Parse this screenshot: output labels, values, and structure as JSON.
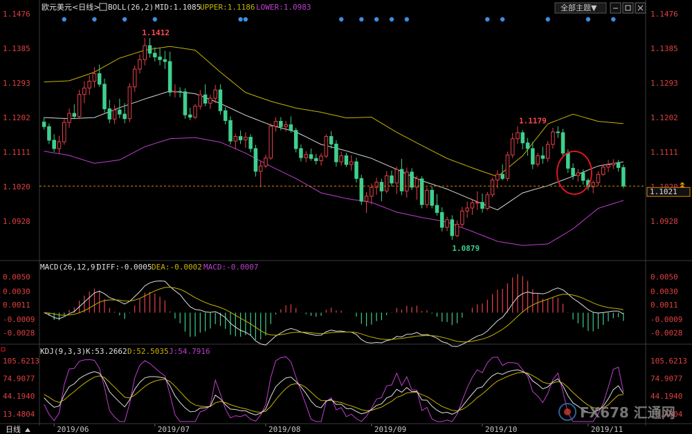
{
  "main": {
    "title": "欧元美元<日线>",
    "indicator": "BOLL(26,2)",
    "mid_text": "MID:1.1085",
    "upper_text": "UPPER:1.1186",
    "lower_text": "LOWER:1.0983",
    "theme_label": "全部主题▼",
    "y_ticks": [
      "1.1476",
      "1.1385",
      "1.1293",
      "1.1202",
      "1.1111",
      "1.1020",
      "1.0928"
    ],
    "high_label": "1.1412",
    "high2_label": "1.1179",
    "low_label": "1.0879",
    "last_price": "1.1021"
  },
  "macd": {
    "title": "MACD(26,12,9)",
    "diff_text": "DIFF:-0.0005",
    "dea_text": "DEA:-0.0002",
    "macd_text": "MACD:-0.0007",
    "y_ticks": [
      "0.0050",
      "0.0030",
      "0.0011",
      "-0.0009",
      "-0.0028"
    ]
  },
  "kdj": {
    "title": "KDJ(9,3,3)",
    "k_text": "K:53.2662",
    "d_text": "D:52.5035",
    "j_text": "J:54.7916",
    "y_ticks": [
      "105.6213",
      "74.9077",
      "44.1940",
      "13.4804"
    ]
  },
  "x_labels": [
    "2019/06",
    "2019/07",
    "2019/08",
    "2019/09",
    "2019/10",
    "2019/11"
  ],
  "bottom_left": "日线",
  "watermark": "FX678 汇通网",
  "colors": {
    "up": "#e8424a",
    "down": "#3fcf8e",
    "mid": "#d9d9d9",
    "upper": "#c8b400",
    "lower": "#c03fd0",
    "macd_diff": "#e0e0e0",
    "macd_dea": "#c8b400",
    "kdj_k": "#e0e0e0",
    "kdj_d": "#c8b400",
    "kdj_j": "#c03fd0",
    "price_line": "#e08a00",
    "accent_red": "#e0161e"
  },
  "chart_data": {
    "type": "candlestick",
    "title": "欧元美元<日线>",
    "xlabel": "",
    "ylabel": "",
    "ylim": [
      1.0837,
      1.1476
    ],
    "x_tick_labels": [
      "2019/06",
      "2019/07",
      "2019/08",
      "2019/09",
      "2019/10",
      "2019/11"
    ],
    "annotations": [
      {
        "text": "1.1412",
        "value": 1.1412
      },
      {
        "text": "1.1179",
        "value": 1.1179
      },
      {
        "text": "1.0879",
        "value": 1.0879
      }
    ],
    "boll": {
      "mid": [
        1.1202,
        1.1199,
        1.1202,
        1.1228,
        1.1251,
        1.1272,
        1.1265,
        1.1239,
        1.1208,
        1.1182,
        1.1164,
        1.1131,
        1.1114,
        1.1094,
        1.1065,
        1.1035,
        1.1013,
        1.0985,
        1.0958,
        1.1003,
        1.1022,
        1.1047,
        1.1074,
        1.1085
      ],
      "upper": [
        1.1296,
        1.1299,
        1.1322,
        1.1359,
        1.138,
        1.139,
        1.138,
        1.1322,
        1.1268,
        1.1245,
        1.1227,
        1.1216,
        1.1201,
        1.1203,
        1.1163,
        1.1128,
        1.1094,
        1.1069,
        1.1046,
        1.1101,
        1.1185,
        1.1211,
        1.1192,
        1.1186
      ],
      "lower": [
        1.1113,
        1.1102,
        1.1081,
        1.109,
        1.1125,
        1.1146,
        1.1149,
        1.1137,
        1.1108,
        1.1073,
        1.1041,
        1.1003,
        1.0988,
        1.0978,
        1.0952,
        1.0938,
        1.0926,
        1.0901,
        1.0875,
        1.0864,
        1.0868,
        1.0908,
        1.0962,
        1.0983
      ]
    },
    "ohlc": [
      [
        1.119,
        1.1203,
        1.117,
        1.1178
      ],
      [
        1.1178,
        1.1186,
        1.1132,
        1.1142
      ],
      [
        1.1142,
        1.1158,
        1.1111,
        1.112
      ],
      [
        1.112,
        1.1154,
        1.1108,
        1.1138
      ],
      [
        1.1138,
        1.1198,
        1.113,
        1.1189
      ],
      [
        1.1189,
        1.1226,
        1.1175,
        1.1213
      ],
      [
        1.1213,
        1.1237,
        1.1198,
        1.1205
      ],
      [
        1.1205,
        1.1275,
        1.1198,
        1.1263
      ],
      [
        1.1263,
        1.1298,
        1.124,
        1.128
      ],
      [
        1.128,
        1.1314,
        1.1262,
        1.1298
      ],
      [
        1.1298,
        1.1335,
        1.1281,
        1.1318
      ],
      [
        1.1318,
        1.1342,
        1.1283,
        1.129
      ],
      [
        1.129,
        1.1305,
        1.1215,
        1.1225
      ],
      [
        1.1225,
        1.1249,
        1.1187,
        1.1198
      ],
      [
        1.1198,
        1.1236,
        1.1185,
        1.1222
      ],
      [
        1.1222,
        1.1252,
        1.12,
        1.1211
      ],
      [
        1.1211,
        1.124,
        1.1187,
        1.1199
      ],
      [
        1.1199,
        1.1293,
        1.119,
        1.1283
      ],
      [
        1.1283,
        1.1339,
        1.127,
        1.133
      ],
      [
        1.133,
        1.1369,
        1.1318,
        1.1355
      ],
      [
        1.1355,
        1.1412,
        1.134,
        1.1392
      ],
      [
        1.1392,
        1.1412,
        1.136,
        1.1372
      ],
      [
        1.1372,
        1.1388,
        1.135,
        1.1362
      ],
      [
        1.1362,
        1.1385,
        1.134,
        1.1355
      ],
      [
        1.1355,
        1.1378,
        1.133,
        1.135
      ],
      [
        1.135,
        1.1376,
        1.1258,
        1.1269
      ],
      [
        1.1269,
        1.129,
        1.1255,
        1.1271
      ],
      [
        1.1271,
        1.1282,
        1.1255,
        1.127
      ],
      [
        1.127,
        1.1279,
        1.1199,
        1.1209
      ],
      [
        1.1209,
        1.1228,
        1.1195,
        1.1203
      ],
      [
        1.1203,
        1.1238,
        1.1198,
        1.1232
      ],
      [
        1.1232,
        1.1275,
        1.1223,
        1.1262
      ],
      [
        1.1262,
        1.129,
        1.1232,
        1.124
      ],
      [
        1.124,
        1.1262,
        1.1225,
        1.1253
      ],
      [
        1.1253,
        1.1288,
        1.124,
        1.1275
      ],
      [
        1.1275,
        1.129,
        1.121,
        1.122
      ],
      [
        1.122,
        1.123,
        1.1184,
        1.1194
      ],
      [
        1.1194,
        1.1205,
        1.113,
        1.114
      ],
      [
        1.114,
        1.116,
        1.1118,
        1.1152
      ],
      [
        1.1152,
        1.1168,
        1.1132,
        1.1143
      ],
      [
        1.1143,
        1.1163,
        1.1122,
        1.115
      ],
      [
        1.115,
        1.1158,
        1.111,
        1.112
      ],
      [
        1.112,
        1.113,
        1.1046,
        1.106
      ],
      [
        1.106,
        1.1087,
        1.1018,
        1.1074
      ],
      [
        1.1074,
        1.1104,
        1.1068,
        1.1095
      ],
      [
        1.1095,
        1.1186,
        1.109,
        1.1179
      ],
      [
        1.1179,
        1.1202,
        1.1165,
        1.1192
      ],
      [
        1.1192,
        1.1203,
        1.1168,
        1.1178
      ],
      [
        1.1178,
        1.1193,
        1.1165,
        1.1183
      ],
      [
        1.1183,
        1.1205,
        1.1162,
        1.1168
      ],
      [
        1.1168,
        1.1175,
        1.111,
        1.112
      ],
      [
        1.112,
        1.1131,
        1.1086,
        1.1096
      ],
      [
        1.1096,
        1.1113,
        1.1084,
        1.1104
      ],
      [
        1.1104,
        1.112,
        1.1088,
        1.1094
      ],
      [
        1.1094,
        1.1106,
        1.1078,
        1.1088
      ],
      [
        1.1088,
        1.1108,
        1.1075,
        1.11
      ],
      [
        1.11,
        1.1158,
        1.1095,
        1.1152
      ],
      [
        1.1152,
        1.1166,
        1.112,
        1.1132
      ],
      [
        1.1132,
        1.1142,
        1.1072,
        1.1085
      ],
      [
        1.1085,
        1.1112,
        1.1075,
        1.1101
      ],
      [
        1.1101,
        1.1109,
        1.1071,
        1.1078
      ],
      [
        1.1078,
        1.1102,
        1.1062,
        1.1085
      ],
      [
        1.1085,
        1.1096,
        1.103,
        1.1041
      ],
      [
        1.1041,
        1.1051,
        1.0971,
        1.0981
      ],
      [
        1.0981,
        1.1005,
        1.095,
        1.0994
      ],
      [
        1.0994,
        1.1028,
        1.0972,
        1.1017
      ],
      [
        1.1017,
        1.1043,
        1.0998,
        1.1031
      ],
      [
        1.1031,
        1.104,
        1.0981,
        1.1008
      ],
      [
        1.1008,
        1.1061,
        1.1002,
        1.1048
      ],
      [
        1.1048,
        1.1062,
        1.102,
        1.1029
      ],
      [
        1.1029,
        1.1072,
        1.1,
        1.1065
      ],
      [
        1.1065,
        1.1093,
        1.0997,
        1.1008
      ],
      [
        1.1008,
        1.107,
        1.099,
        1.1058
      ],
      [
        1.1058,
        1.1068,
        1.101,
        1.1018
      ],
      [
        1.1018,
        1.1048,
        1.0985,
        1.104
      ],
      [
        1.104,
        1.1047,
        1.0962,
        1.0972
      ],
      [
        1.0972,
        1.1018,
        1.0963,
        1.101
      ],
      [
        1.101,
        1.102,
        1.0962,
        1.097
      ],
      [
        1.097,
        1.1,
        1.0943,
        1.0951
      ],
      [
        1.0951,
        1.0965,
        1.0901,
        1.0912
      ],
      [
        1.0912,
        1.094,
        1.0902,
        1.0932
      ],
      [
        1.0932,
        1.0944,
        1.0879,
        1.089
      ],
      [
        1.089,
        1.093,
        1.0886,
        1.092
      ],
      [
        1.092,
        1.0966,
        1.0913,
        1.0955
      ],
      [
        1.0955,
        1.098,
        1.0937,
        1.0963
      ],
      [
        1.0963,
        1.0985,
        1.0945,
        1.0977
      ],
      [
        1.0977,
        1.1007,
        1.0958,
        1.0978
      ],
      [
        1.0978,
        1.1001,
        1.0951,
        1.0962
      ],
      [
        1.0962,
        1.1005,
        1.0957,
        1.0998
      ],
      [
        1.0998,
        1.1043,
        1.0991,
        1.1037
      ],
      [
        1.1037,
        1.1063,
        1.1015,
        1.1052
      ],
      [
        1.1052,
        1.1078,
        1.1036,
        1.1041
      ],
      [
        1.1041,
        1.1112,
        1.1034,
        1.1103
      ],
      [
        1.1103,
        1.1161,
        1.1095,
        1.1146
      ],
      [
        1.1146,
        1.1179,
        1.1133,
        1.1162
      ],
      [
        1.1162,
        1.1169,
        1.1118,
        1.1135
      ],
      [
        1.1135,
        1.1148,
        1.1101,
        1.112
      ],
      [
        1.112,
        1.1138,
        1.1066,
        1.1079
      ],
      [
        1.1079,
        1.1109,
        1.1072,
        1.1101
      ],
      [
        1.1101,
        1.1125,
        1.108,
        1.1094
      ],
      [
        1.1094,
        1.114,
        1.1085,
        1.1131
      ],
      [
        1.1131,
        1.1175,
        1.112,
        1.1164
      ],
      [
        1.1164,
        1.1179,
        1.1148,
        1.1162
      ],
      [
        1.1162,
        1.1172,
        1.11,
        1.1108
      ],
      [
        1.1108,
        1.1118,
        1.1056,
        1.1068
      ],
      [
        1.1068,
        1.1081,
        1.1038,
        1.1049
      ],
      [
        1.1049,
        1.1066,
        1.1033,
        1.1056
      ],
      [
        1.1056,
        1.1065,
        1.1025,
        1.1036
      ],
      [
        1.1036,
        1.1041,
        1.101,
        1.1019
      ],
      [
        1.1019,
        1.1036,
        1.1002,
        1.103
      ],
      [
        1.103,
        1.106,
        1.1021,
        1.1052
      ],
      [
        1.1052,
        1.1079,
        1.1048,
        1.1071
      ],
      [
        1.1071,
        1.109,
        1.1058,
        1.1077
      ],
      [
        1.1077,
        1.1092,
        1.1066,
        1.1081
      ],
      [
        1.1081,
        1.109,
        1.1059,
        1.107
      ],
      [
        1.107,
        1.1078,
        1.1015,
        1.1021
      ]
    ],
    "macd_ylim": [
      -0.004,
      0.0062
    ],
    "macd_y_tick_labels": [
      "0.0050",
      "0.0030",
      "0.0011",
      "-0.0009",
      "-0.0028"
    ],
    "kdj_ylim": [
      0,
      120
    ],
    "kdj_y_tick_labels": [
      "105.6213",
      "74.9077",
      "44.1940",
      "13.4804"
    ]
  }
}
